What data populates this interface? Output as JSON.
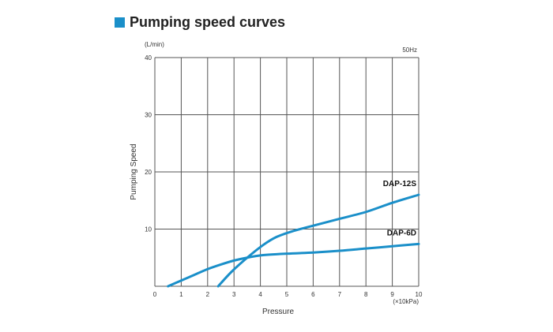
{
  "heading": {
    "title": "Pumping speed curves",
    "accent_color": "#1a8fc9"
  },
  "chart_data": {
    "type": "line",
    "title": "",
    "xlabel": "Pressure",
    "ylabel": "Pumping Speed",
    "x_unit": "(×10kPa)",
    "y_unit": "(L/min)",
    "frequency_note": "50Hz",
    "xlim": [
      0,
      10
    ],
    "ylim": [
      0,
      40
    ],
    "x_ticks": [
      "0",
      "1",
      "2",
      "3",
      "4",
      "5",
      "6",
      "7",
      "8",
      "9",
      "10"
    ],
    "y_ticks": [
      "10",
      "20",
      "30",
      "40"
    ],
    "grid": true,
    "line_color": "#1a8fc9",
    "series": [
      {
        "name": "DAP-12S",
        "x": [
          2.4,
          2.9,
          3.5,
          4.1,
          4.6,
          5.2,
          6.0,
          7.0,
          8.0,
          9.0,
          10.0
        ],
        "y": [
          0,
          2.5,
          5.0,
          7.2,
          8.6,
          9.6,
          10.6,
          11.8,
          13.0,
          14.6,
          16.0
        ]
      },
      {
        "name": "DAP-6D",
        "x": [
          0.5,
          1.0,
          1.5,
          2.0,
          2.5,
          3.0,
          3.5,
          4.0,
          5.0,
          6.0,
          7.0,
          8.0,
          9.0,
          10.0
        ],
        "y": [
          0,
          1.0,
          2.0,
          3.0,
          3.8,
          4.5,
          5.0,
          5.4,
          5.7,
          5.9,
          6.2,
          6.6,
          7.0,
          7.4
        ]
      }
    ]
  }
}
